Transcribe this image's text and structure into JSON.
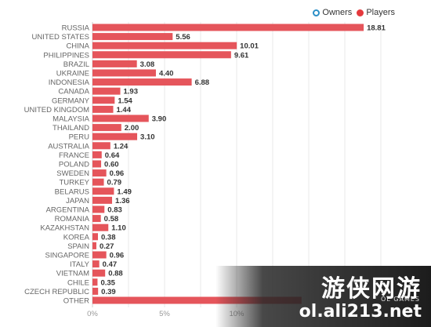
{
  "legend": {
    "owners_label": "Owners",
    "players_label": "Players"
  },
  "colors": {
    "bar": "#e5555b",
    "owners": "#2b8fc7",
    "players": "#e5393d"
  },
  "chart_data": {
    "type": "bar",
    "orientation": "horizontal",
    "categories": [
      "RUSSIA",
      "UNITED STATES",
      "CHINA",
      "PHILIPPINES",
      "BRAZIL",
      "UKRAINE",
      "INDONESIA",
      "CANADA",
      "GERMANY",
      "UNITED KINGDOM",
      "MALAYSIA",
      "THAILAND",
      "PERU",
      "AUSTRALIA",
      "FRANCE",
      "POLAND",
      "SWEDEN",
      "TURKEY",
      "BELARUS",
      "JAPAN",
      "ARGENTINA",
      "ROMANIA",
      "KAZAKHSTAN",
      "KOREA",
      "SPAIN",
      "SINGAPORE",
      "ITALY",
      "VIETNAM",
      "CHILE",
      "CZECH REPUBLIC",
      "OTHER"
    ],
    "series": [
      {
        "name": "Players",
        "values": [
          18.81,
          5.56,
          10.01,
          9.61,
          3.08,
          4.4,
          6.88,
          1.93,
          1.54,
          1.44,
          3.9,
          2.0,
          3.1,
          1.24,
          0.64,
          0.6,
          0.96,
          0.79,
          1.49,
          1.36,
          0.83,
          0.58,
          1.1,
          0.38,
          0.27,
          0.96,
          0.47,
          0.88,
          0.35,
          0.39,
          14.5
        ]
      }
    ],
    "value_labels": [
      "18.81",
      "5.56",
      "10.01",
      "9.61",
      "3.08",
      "4.40",
      "6.88",
      "1.93",
      "1.54",
      "1.44",
      "3.90",
      "2.00",
      "3.10",
      "1.24",
      "0.64",
      "0.60",
      "0.96",
      "0.79",
      "1.49",
      "1.36",
      "0.83",
      "0.58",
      "1.10",
      "0.38",
      "0.27",
      "0.96",
      "0.47",
      "0.88",
      "0.35",
      "0.39",
      ""
    ],
    "xticks": [
      "0%",
      "5%",
      "10%"
    ],
    "xtick_values": [
      0,
      5,
      10
    ],
    "xlim": [
      0,
      20
    ],
    "grid": true,
    "legend_position": "top-right"
  },
  "watermark": {
    "line1": "游侠网游",
    "sub": "OL GAMES",
    "line2": "ol.ali213.net"
  }
}
